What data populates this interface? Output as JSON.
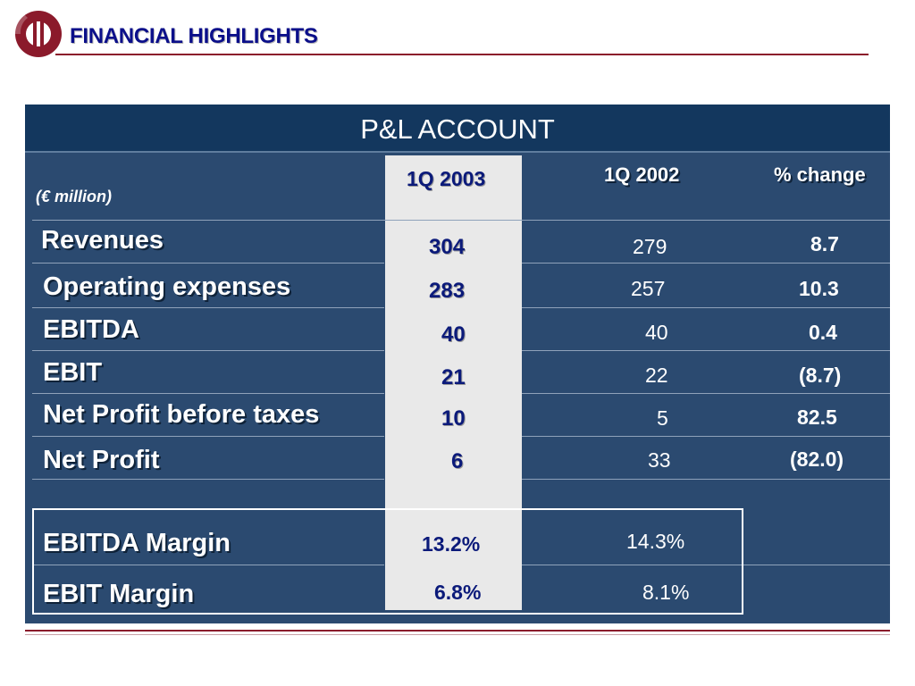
{
  "header": {
    "title": "FINANCIAL HIGHLIGHTS",
    "logo": "circular-o-logo"
  },
  "table": {
    "title": "P&L ACCOUNT",
    "unit_label": "(€ million)",
    "columns": {
      "current": "1Q 2003",
      "prior": "1Q 2002",
      "change": "% change"
    },
    "rows": [
      {
        "label": "Revenues",
        "current": "304",
        "prior": "279",
        "change": "8.7"
      },
      {
        "label": "Operating expenses",
        "current": "283",
        "prior": "257",
        "change": "10.3"
      },
      {
        "label": "EBITDA",
        "current": "40",
        "prior": "40",
        "change": "0.4"
      },
      {
        "label": "EBIT",
        "current": "21",
        "prior": "22",
        "change": "(8.7)"
      },
      {
        "label": "Net Profit before taxes",
        "current": "10",
        "prior": "5",
        "change": "82.5"
      },
      {
        "label": "Net Profit",
        "current": "6",
        "prior": "33",
        "change": "(82.0)"
      }
    ],
    "margins": [
      {
        "label": "EBITDA Margin",
        "current": "13.2%",
        "prior": "14.3%"
      },
      {
        "label": "EBIT Margin",
        "current": "6.8%",
        "prior": "8.1%"
      }
    ]
  },
  "colors": {
    "title": "#0b0f8a",
    "rule": "#8b1a2b",
    "panel": "#2b4a70",
    "panel_header": "#13375e",
    "highlight_column": "#e9e9e9",
    "highlight_text": "#0b1a7a"
  }
}
